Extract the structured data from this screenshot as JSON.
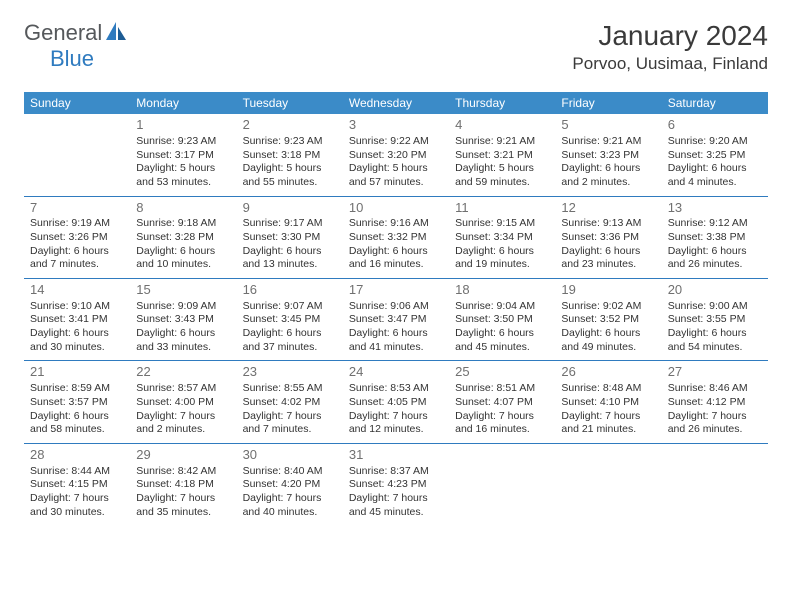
{
  "logo": {
    "text1": "General",
    "text2": "Blue"
  },
  "title": "January 2024",
  "location": "Porvoo, Uusimaa, Finland",
  "colors": {
    "header_bg": "#3b8bc8",
    "header_text": "#ffffff",
    "row_border": "#2f7bbf",
    "text": "#333333",
    "daynum": "#707070",
    "logo_gray": "#55585b",
    "logo_blue": "#2f7bbf",
    "background": "#ffffff"
  },
  "day_headers": [
    "Sunday",
    "Monday",
    "Tuesday",
    "Wednesday",
    "Thursday",
    "Friday",
    "Saturday"
  ],
  "weeks": [
    [
      {
        "day": "",
        "sunrise": "",
        "sunset": "",
        "daylight": ""
      },
      {
        "day": "1",
        "sunrise": "Sunrise: 9:23 AM",
        "sunset": "Sunset: 3:17 PM",
        "daylight": "Daylight: 5 hours and 53 minutes."
      },
      {
        "day": "2",
        "sunrise": "Sunrise: 9:23 AM",
        "sunset": "Sunset: 3:18 PM",
        "daylight": "Daylight: 5 hours and 55 minutes."
      },
      {
        "day": "3",
        "sunrise": "Sunrise: 9:22 AM",
        "sunset": "Sunset: 3:20 PM",
        "daylight": "Daylight: 5 hours and 57 minutes."
      },
      {
        "day": "4",
        "sunrise": "Sunrise: 9:21 AM",
        "sunset": "Sunset: 3:21 PM",
        "daylight": "Daylight: 5 hours and 59 minutes."
      },
      {
        "day": "5",
        "sunrise": "Sunrise: 9:21 AM",
        "sunset": "Sunset: 3:23 PM",
        "daylight": "Daylight: 6 hours and 2 minutes."
      },
      {
        "day": "6",
        "sunrise": "Sunrise: 9:20 AM",
        "sunset": "Sunset: 3:25 PM",
        "daylight": "Daylight: 6 hours and 4 minutes."
      }
    ],
    [
      {
        "day": "7",
        "sunrise": "Sunrise: 9:19 AM",
        "sunset": "Sunset: 3:26 PM",
        "daylight": "Daylight: 6 hours and 7 minutes."
      },
      {
        "day": "8",
        "sunrise": "Sunrise: 9:18 AM",
        "sunset": "Sunset: 3:28 PM",
        "daylight": "Daylight: 6 hours and 10 minutes."
      },
      {
        "day": "9",
        "sunrise": "Sunrise: 9:17 AM",
        "sunset": "Sunset: 3:30 PM",
        "daylight": "Daylight: 6 hours and 13 minutes."
      },
      {
        "day": "10",
        "sunrise": "Sunrise: 9:16 AM",
        "sunset": "Sunset: 3:32 PM",
        "daylight": "Daylight: 6 hours and 16 minutes."
      },
      {
        "day": "11",
        "sunrise": "Sunrise: 9:15 AM",
        "sunset": "Sunset: 3:34 PM",
        "daylight": "Daylight: 6 hours and 19 minutes."
      },
      {
        "day": "12",
        "sunrise": "Sunrise: 9:13 AM",
        "sunset": "Sunset: 3:36 PM",
        "daylight": "Daylight: 6 hours and 23 minutes."
      },
      {
        "day": "13",
        "sunrise": "Sunrise: 9:12 AM",
        "sunset": "Sunset: 3:38 PM",
        "daylight": "Daylight: 6 hours and 26 minutes."
      }
    ],
    [
      {
        "day": "14",
        "sunrise": "Sunrise: 9:10 AM",
        "sunset": "Sunset: 3:41 PM",
        "daylight": "Daylight: 6 hours and 30 minutes."
      },
      {
        "day": "15",
        "sunrise": "Sunrise: 9:09 AM",
        "sunset": "Sunset: 3:43 PM",
        "daylight": "Daylight: 6 hours and 33 minutes."
      },
      {
        "day": "16",
        "sunrise": "Sunrise: 9:07 AM",
        "sunset": "Sunset: 3:45 PM",
        "daylight": "Daylight: 6 hours and 37 minutes."
      },
      {
        "day": "17",
        "sunrise": "Sunrise: 9:06 AM",
        "sunset": "Sunset: 3:47 PM",
        "daylight": "Daylight: 6 hours and 41 minutes."
      },
      {
        "day": "18",
        "sunrise": "Sunrise: 9:04 AM",
        "sunset": "Sunset: 3:50 PM",
        "daylight": "Daylight: 6 hours and 45 minutes."
      },
      {
        "day": "19",
        "sunrise": "Sunrise: 9:02 AM",
        "sunset": "Sunset: 3:52 PM",
        "daylight": "Daylight: 6 hours and 49 minutes."
      },
      {
        "day": "20",
        "sunrise": "Sunrise: 9:00 AM",
        "sunset": "Sunset: 3:55 PM",
        "daylight": "Daylight: 6 hours and 54 minutes."
      }
    ],
    [
      {
        "day": "21",
        "sunrise": "Sunrise: 8:59 AM",
        "sunset": "Sunset: 3:57 PM",
        "daylight": "Daylight: 6 hours and 58 minutes."
      },
      {
        "day": "22",
        "sunrise": "Sunrise: 8:57 AM",
        "sunset": "Sunset: 4:00 PM",
        "daylight": "Daylight: 7 hours and 2 minutes."
      },
      {
        "day": "23",
        "sunrise": "Sunrise: 8:55 AM",
        "sunset": "Sunset: 4:02 PM",
        "daylight": "Daylight: 7 hours and 7 minutes."
      },
      {
        "day": "24",
        "sunrise": "Sunrise: 8:53 AM",
        "sunset": "Sunset: 4:05 PM",
        "daylight": "Daylight: 7 hours and 12 minutes."
      },
      {
        "day": "25",
        "sunrise": "Sunrise: 8:51 AM",
        "sunset": "Sunset: 4:07 PM",
        "daylight": "Daylight: 7 hours and 16 minutes."
      },
      {
        "day": "26",
        "sunrise": "Sunrise: 8:48 AM",
        "sunset": "Sunset: 4:10 PM",
        "daylight": "Daylight: 7 hours and 21 minutes."
      },
      {
        "day": "27",
        "sunrise": "Sunrise: 8:46 AM",
        "sunset": "Sunset: 4:12 PM",
        "daylight": "Daylight: 7 hours and 26 minutes."
      }
    ],
    [
      {
        "day": "28",
        "sunrise": "Sunrise: 8:44 AM",
        "sunset": "Sunset: 4:15 PM",
        "daylight": "Daylight: 7 hours and 30 minutes."
      },
      {
        "day": "29",
        "sunrise": "Sunrise: 8:42 AM",
        "sunset": "Sunset: 4:18 PM",
        "daylight": "Daylight: 7 hours and 35 minutes."
      },
      {
        "day": "30",
        "sunrise": "Sunrise: 8:40 AM",
        "sunset": "Sunset: 4:20 PM",
        "daylight": "Daylight: 7 hours and 40 minutes."
      },
      {
        "day": "31",
        "sunrise": "Sunrise: 8:37 AM",
        "sunset": "Sunset: 4:23 PM",
        "daylight": "Daylight: 7 hours and 45 minutes."
      },
      {
        "day": "",
        "sunrise": "",
        "sunset": "",
        "daylight": ""
      },
      {
        "day": "",
        "sunrise": "",
        "sunset": "",
        "daylight": ""
      },
      {
        "day": "",
        "sunrise": "",
        "sunset": "",
        "daylight": ""
      }
    ]
  ]
}
